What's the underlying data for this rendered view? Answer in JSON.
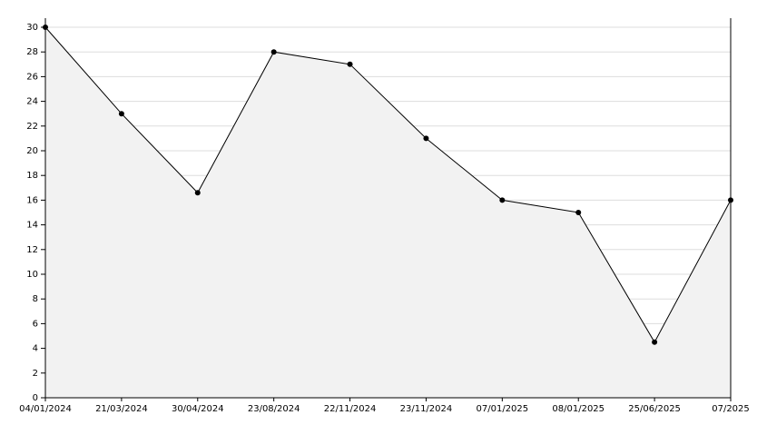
{
  "chart_data": {
    "type": "area",
    "categories": [
      "04/01/2024",
      "21/03/2024",
      "30/04/2024",
      "23/08/2024",
      "22/11/2024",
      "23/11/2024",
      "07/01/2025",
      "08/01/2025",
      "25/06/2025",
      "07/2025"
    ],
    "values": [
      30,
      23,
      16.6,
      28,
      27,
      21,
      16,
      15,
      4.5,
      16
    ],
    "color": "#000000",
    "fill": "#f2f2f2",
    "ylim": [
      0,
      30
    ],
    "yticks": [
      0,
      2,
      4,
      6,
      8,
      10,
      12,
      14,
      16,
      18,
      20,
      22,
      24,
      26,
      28,
      30
    ],
    "grid": true
  }
}
